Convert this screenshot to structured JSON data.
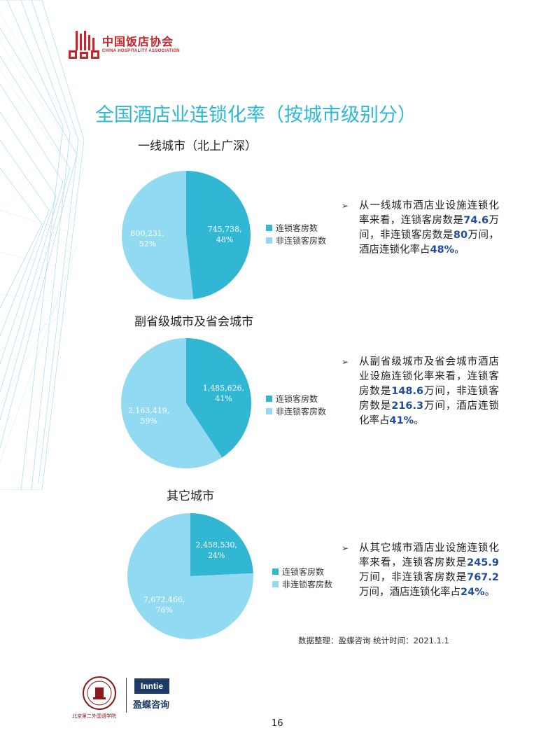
{
  "header": {
    "logo_cn": "中国饭店协会",
    "logo_en": "CHINA HOSPITALITY ASSOCIATION"
  },
  "page_title": "全国酒店业连锁化率（按城市级别分）",
  "colors": {
    "chain": "#31b6d4",
    "non_chain": "#92d9f2",
    "accent": "#1f4e9c",
    "title": "#2db8d6"
  },
  "sections": [
    {
      "title": "一线城市（北上广深）",
      "legend": [
        "连锁客房数",
        "非连锁客房数"
      ],
      "labels": [
        {
          "value": "745,738,",
          "pct": "48%"
        },
        {
          "value": "800,231,",
          "pct": "52%"
        }
      ],
      "note": {
        "pre1": "从一线城市酒店业设施连锁化率来看，连锁客房数是",
        "num1": "74.6",
        "mid": "万间，非连锁客房数是",
        "num2": "80",
        "post": "万间，酒店连锁化率占",
        "rate": "48%",
        "end": "。"
      }
    },
    {
      "title": "副省级城市及省会城市",
      "legend": [
        "连锁客房数",
        "非连锁客房数"
      ],
      "labels": [
        {
          "value": "1,485,626,",
          "pct": "41%"
        },
        {
          "value": "2,163,419,",
          "pct": "59%"
        }
      ],
      "note": {
        "pre1": "从副省级城市及省会城市酒店业设施连锁化率来看，连锁客房数是",
        "num1": "148.6",
        "mid": "万间，非连锁客房数是",
        "num2": "216.3",
        "post": "万间，酒店连锁化率占",
        "rate": "41%",
        "end": "。"
      }
    },
    {
      "title": "其它城市",
      "legend": [
        "连锁客房数",
        "非连锁客房数"
      ],
      "labels": [
        {
          "value": "2,458,530,",
          "pct": "24%"
        },
        {
          "value": "7,672,466,",
          "pct": "76%"
        }
      ],
      "note": {
        "pre1": "从其它城市酒店业设施连锁化率来看，连锁客房数是",
        "num1": "245.9",
        "mid": "万间，非连锁客房数是",
        "num2": "767.2",
        "post": "万间，酒店连锁化率占",
        "rate": "24%",
        "end": "。"
      }
    }
  ],
  "chart_data": [
    {
      "type": "pie",
      "title": "一线城市（北上广深）",
      "categories": [
        "连锁客房数",
        "非连锁客房数"
      ],
      "values": [
        745738,
        800231
      ],
      "percent": [
        48,
        52
      ]
    },
    {
      "type": "pie",
      "title": "副省级城市及省会城市",
      "categories": [
        "连锁客房数",
        "非连锁客房数"
      ],
      "values": [
        1485626,
        2163419
      ],
      "percent": [
        41,
        59
      ]
    },
    {
      "type": "pie",
      "title": "其它城市",
      "categories": [
        "连锁客房数",
        "非连锁客房数"
      ],
      "values": [
        2458530,
        7672466
      ],
      "percent": [
        24,
        76
      ]
    }
  ],
  "source": "数据整理：盈蝶咨询  统计时间：2021.1.1",
  "footer": {
    "seal_text": "北京第二外国语学院",
    "seal_text_en": "BEIJING INTERNATIONAL STUDIES UNIVERSITY",
    "inntie": "Inntie",
    "inntie_cn": "盈蝶咨询"
  },
  "page_number": "16"
}
